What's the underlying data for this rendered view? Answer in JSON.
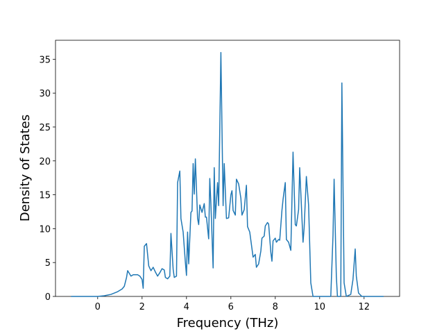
{
  "chart_data": {
    "type": "line",
    "x_label": "Frequency (THz)",
    "y_label": "Density of States",
    "xlim": [
      -1.9,
      13.6
    ],
    "ylim": [
      0,
      37.8
    ],
    "xticks": [
      0,
      2,
      4,
      6,
      8,
      10,
      12
    ],
    "yticks": [
      0,
      5,
      10,
      15,
      20,
      25,
      30,
      35
    ],
    "grid": false,
    "series": [
      {
        "color": "#1f77b4",
        "x": [
          -1.2,
          -0.5,
          0,
          0.3,
          0.6,
          0.9,
          1.1,
          1.2,
          1.3,
          1.35,
          1.5,
          1.6,
          1.8,
          1.9,
          2.0,
          2.05,
          2.1,
          2.2,
          2.3,
          2.4,
          2.5,
          2.6,
          2.7,
          2.8,
          2.9,
          3.0,
          3.05,
          3.15,
          3.25,
          3.3,
          3.4,
          3.45,
          3.55,
          3.6,
          3.7,
          3.75,
          3.85,
          3.95,
          4.0,
          4.05,
          4.1,
          4.2,
          4.25,
          4.3,
          4.35,
          4.4,
          4.5,
          4.55,
          4.6,
          4.7,
          4.8,
          4.85,
          4.9,
          5.0,
          5.05,
          5.1,
          5.2,
          5.25,
          5.3,
          5.4,
          5.45,
          5.55,
          5.65,
          5.7,
          5.8,
          5.9,
          6.0,
          6.05,
          6.1,
          6.2,
          6.25,
          6.35,
          6.45,
          6.5,
          6.6,
          6.7,
          6.75,
          6.85,
          7.0,
          7.1,
          7.15,
          7.25,
          7.35,
          7.4,
          7.5,
          7.55,
          7.65,
          7.7,
          7.8,
          7.85,
          7.9,
          8.0,
          8.05,
          8.15,
          8.2,
          8.3,
          8.35,
          8.45,
          8.5,
          8.6,
          8.7,
          8.8,
          8.9,
          8.95,
          9.05,
          9.1,
          9.25,
          9.3,
          9.4,
          9.5,
          9.6,
          9.7,
          10.0,
          10.5,
          10.6,
          10.65,
          10.75,
          10.8,
          10.95,
          11.0,
          11.1,
          11.2,
          11.4,
          11.5,
          11.6,
          11.65,
          11.75,
          11.9,
          12.88
        ],
        "values": [
          0,
          0,
          0,
          0.1,
          0.3,
          0.7,
          1.1,
          1.5,
          2.8,
          3.8,
          3.0,
          3.2,
          3.2,
          3.0,
          2.5,
          1.2,
          7.4,
          7.8,
          4.5,
          3.8,
          4.3,
          3.6,
          3.0,
          3.5,
          4.1,
          3.9,
          2.8,
          2.6,
          3.0,
          9.3,
          4.0,
          2.8,
          3.0,
          16.8,
          18.5,
          11.5,
          9.5,
          5.0,
          3.1,
          9.5,
          4.8,
          12.4,
          12.6,
          19.6,
          15.1,
          20.3,
          11.5,
          10.6,
          13.5,
          12.4,
          13.7,
          11.7,
          11.7,
          8.5,
          17.4,
          13.7,
          4.2,
          19.0,
          11.5,
          16.8,
          13.4,
          36.0,
          13.4,
          19.6,
          11.5,
          11.6,
          15.0,
          15.6,
          12.7,
          12.0,
          17.3,
          16.6,
          14.5,
          12.0,
          12.8,
          16.4,
          10.3,
          9.5,
          5.8,
          6.2,
          4.3,
          4.8,
          6.7,
          8.6,
          8.9,
          10.4,
          10.9,
          10.7,
          6.5,
          5.2,
          8.2,
          8.6,
          8.0,
          8.4,
          8.3,
          12.7,
          14.3,
          16.8,
          8.4,
          8.0,
          6.8,
          21.3,
          10.6,
          10.4,
          12.8,
          19.0,
          8.0,
          10.1,
          17.7,
          13.5,
          2.0,
          0,
          0,
          0,
          9.0,
          17.3,
          3.0,
          0,
          0,
          31.5,
          2.0,
          0,
          0.3,
          2.5,
          7.0,
          3.0,
          0.5,
          0,
          0
        ]
      }
    ]
  }
}
